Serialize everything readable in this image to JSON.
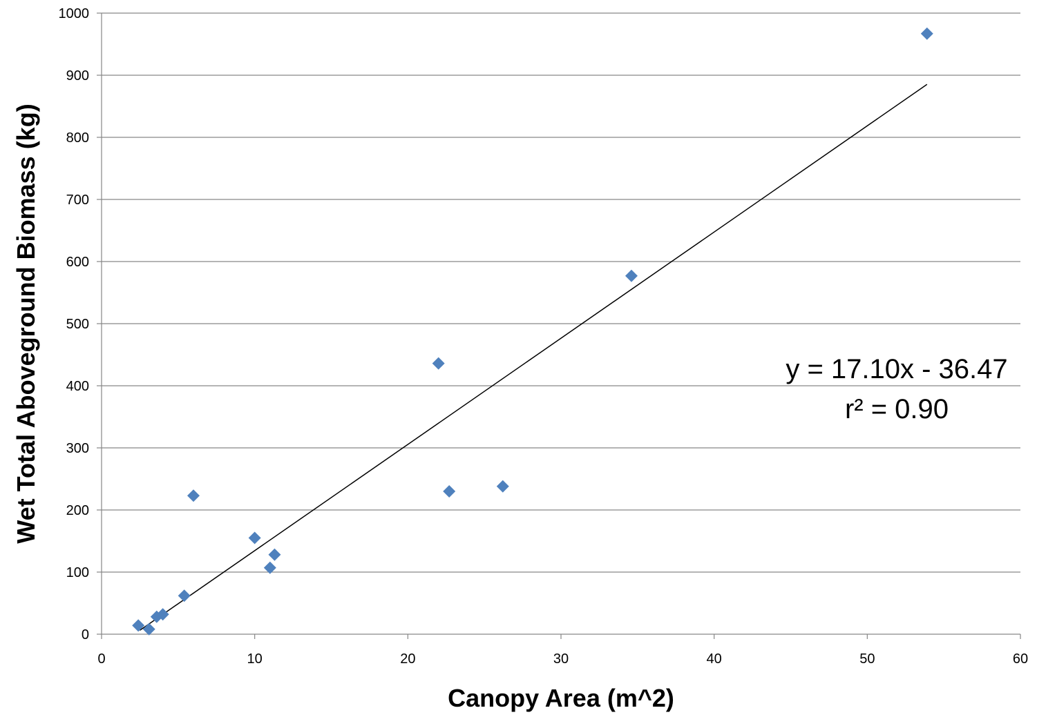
{
  "chart_data": {
    "type": "scatter",
    "title": "",
    "xlabel": "Canopy Area (m^2)",
    "ylabel": "Wet Total Aboveground Biomass (kg)",
    "xlim": [
      0,
      60
    ],
    "ylim": [
      0,
      1000
    ],
    "x_ticks": [
      "0",
      "10",
      "20",
      "30",
      "40",
      "50",
      "60"
    ],
    "y_ticks": [
      "0",
      "100",
      "200",
      "300",
      "400",
      "500",
      "600",
      "700",
      "800",
      "900",
      "1000"
    ],
    "grid": "horizontal",
    "legend": "none",
    "series": [
      {
        "marker": "diamond",
        "color": "#4f81bd",
        "points": [
          {
            "x": 2.4,
            "y": 14
          },
          {
            "x": 3.1,
            "y": 8
          },
          {
            "x": 3.6,
            "y": 28
          },
          {
            "x": 4.0,
            "y": 32
          },
          {
            "x": 5.4,
            "y": 62
          },
          {
            "x": 6.0,
            "y": 223
          },
          {
            "x": 10.0,
            "y": 155
          },
          {
            "x": 11.0,
            "y": 107
          },
          {
            "x": 11.3,
            "y": 128
          },
          {
            "x": 22.0,
            "y": 436
          },
          {
            "x": 22.7,
            "y": 230
          },
          {
            "x": 26.2,
            "y": 238
          },
          {
            "x": 34.6,
            "y": 577
          },
          {
            "x": 53.9,
            "y": 967
          }
        ]
      }
    ],
    "trendline": {
      "slope": 17.1,
      "intercept": -36.47,
      "x_range": [
        2.5,
        53.9
      ],
      "color": "#000000"
    },
    "annotations": {
      "equation": "y = 17.10x - 36.47",
      "r_squared": "r² = 0.90"
    }
  }
}
